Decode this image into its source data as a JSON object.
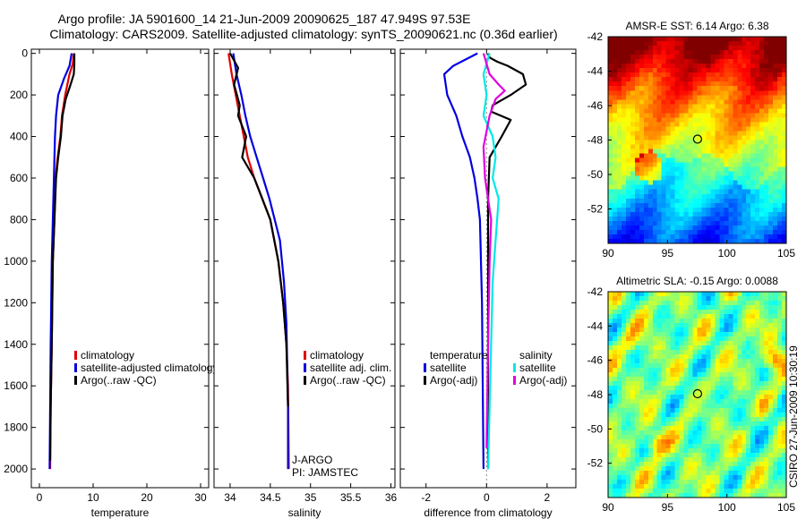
{
  "header": {
    "title_line1": "Argo profile: JA 5901600_14 21-Jun-2009 20090625_187 47.949S 97.53E",
    "title_line2": "Climatology: CARS2009. Satellite-adjusted climatology: synTS_20090621.nc (0.36d earlier)"
  },
  "side_label": "CSIRO 27-Jun-2009 10:30:19",
  "colors": {
    "climatology": "#e00000",
    "satellite": "#0000e0",
    "argo": "#000000",
    "sat_salinity": "#00e8e8",
    "argo_salinity": "#e000e0"
  },
  "chart_data": [
    {
      "type": "line",
      "id": "temperature",
      "xlabel": "temperature",
      "xlim": [
        -1.5,
        31.5
      ],
      "ylim": [
        2090,
        -20
      ],
      "xticks": [
        0,
        10,
        20,
        30
      ],
      "xtick_labels": [
        "0",
        "10",
        "20",
        "30"
      ],
      "yticks": [
        0,
        200,
        400,
        600,
        800,
        1000,
        1200,
        1400,
        1600,
        1800,
        2000
      ],
      "ytick_labels": [
        "0",
        "200",
        "400",
        "600",
        "800",
        "1000",
        "1200",
        "1400",
        "1600",
        "1800",
        "2000"
      ],
      "legend": [
        "climatology",
        "satellite-adjusted climatology",
        "Argo(..raw -QC)"
      ],
      "legend_position": "lower-middle",
      "series": [
        {
          "name": "climatology",
          "color": "climatology",
          "x": [
            6.4,
            6.2,
            5.6,
            4.8,
            4.2,
            3.9,
            3.4,
            3.0,
            2.8,
            2.5,
            2.3,
            2.1,
            2.0
          ],
          "y": [
            0,
            50,
            100,
            200,
            300,
            400,
            500,
            600,
            800,
            1000,
            1400,
            1700,
            2000
          ]
        },
        {
          "name": "satellite-adjusted climatology",
          "color": "satellite",
          "x": [
            6.0,
            5.6,
            4.6,
            3.5,
            3.1,
            2.9,
            2.8,
            2.7,
            2.5,
            2.3,
            2.1,
            2.0,
            1.9
          ],
          "y": [
            0,
            60,
            120,
            200,
            300,
            400,
            500,
            600,
            800,
            1000,
            1400,
            1700,
            2000
          ]
        },
        {
          "name": "Argo(..raw -QC)",
          "color": "argo",
          "x": [
            6.5,
            6.5,
            6.4,
            5.8,
            4.9,
            4.3,
            4.0,
            3.5,
            3.1,
            2.8,
            2.5,
            2.3,
            2.1,
            2.0
          ],
          "y": [
            0,
            50,
            100,
            150,
            220,
            300,
            400,
            500,
            600,
            800,
            1000,
            1400,
            1700,
            1960
          ]
        }
      ]
    },
    {
      "type": "line",
      "id": "salinity",
      "xlabel": "salinity",
      "xlim": [
        33.8,
        36.05
      ],
      "ylim": [
        2090,
        -20
      ],
      "xticks": [
        34,
        34.5,
        35,
        35.5,
        36
      ],
      "xtick_labels": [
        "34",
        "34.5",
        "35",
        "35.5",
        "36"
      ],
      "legend": [
        "climatology",
        "satellite adj. clim.",
        "Argo(..raw -QC)"
      ],
      "legend_position": "lower-middle",
      "annotations": [
        "J-ARGO",
        "PI: JAMSTEC"
      ],
      "series": [
        {
          "name": "climatology",
          "color": "climatology",
          "x": [
            33.98,
            34.02,
            34.07,
            34.12,
            34.17,
            34.22,
            34.3,
            34.4,
            34.5,
            34.6,
            34.66,
            34.7,
            34.72,
            34.73
          ],
          "y": [
            0,
            100,
            200,
            300,
            400,
            500,
            600,
            700,
            800,
            1000,
            1200,
            1400,
            1600,
            2000
          ]
        },
        {
          "name": "satellite adj. clim.",
          "color": "satellite",
          "x": [
            34.04,
            34.08,
            34.14,
            34.19,
            34.25,
            34.33,
            34.41,
            34.49,
            34.62,
            34.67,
            34.7,
            34.71,
            34.72,
            34.72
          ],
          "y": [
            0,
            100,
            200,
            300,
            400,
            500,
            600,
            700,
            900,
            1100,
            1300,
            1500,
            1700,
            2000
          ]
        },
        {
          "name": "Argo(..raw -QC)",
          "color": "argo",
          "x": [
            34.0,
            34.1,
            34.05,
            34.12,
            34.1,
            34.2,
            34.15,
            34.3,
            34.4,
            34.5,
            34.6,
            34.66,
            34.7,
            34.72
          ],
          "y": [
            0,
            70,
            150,
            250,
            300,
            400,
            500,
            600,
            700,
            800,
            1000,
            1200,
            1400,
            1700
          ]
        }
      ]
    },
    {
      "type": "line",
      "id": "difference",
      "xlabel": "difference from climatology",
      "xlim": [
        -2.85,
        2.95
      ],
      "ylim": [
        2090,
        -20
      ],
      "xticks": [
        -2,
        0,
        2
      ],
      "xtick_labels": [
        "-2",
        "0",
        "2"
      ],
      "legend": [
        "temperature",
        "satellite",
        "Argo(-adj)",
        "salinity",
        "satellite",
        "Argo(-adj)"
      ],
      "legend_position": "lower-middle",
      "series": [
        {
          "name": "temperature satellite",
          "color": "satellite",
          "x": [
            -0.3,
            -1.1,
            -1.4,
            -1.3,
            -1.0,
            -0.8,
            -0.55,
            -0.4,
            -0.3,
            -0.22,
            -0.15,
            -0.1
          ],
          "y": [
            0,
            60,
            100,
            200,
            300,
            400,
            500,
            600,
            700,
            800,
            1200,
            2000
          ]
        },
        {
          "name": "temperature Argo(-adj)",
          "color": "argo",
          "x": [
            0.05,
            0.1,
            0.35,
            0.7,
            1.2,
            1.3,
            0.8,
            0.2,
            0.15,
            0.8,
            0.5,
            0.1,
            0.05,
            0.05
          ],
          "y": [
            0,
            20,
            40,
            60,
            100,
            150,
            200,
            250,
            280,
            320,
            400,
            500,
            700,
            2000
          ]
        },
        {
          "name": "salinity satellite",
          "color": "sat_salinity",
          "x": [
            0.1,
            0.0,
            -0.1,
            0.0,
            -0.1,
            0.2,
            0.3,
            0.2,
            0.4,
            0.3,
            0.2,
            0.05
          ],
          "y": [
            0,
            50,
            100,
            200,
            300,
            400,
            500,
            600,
            700,
            900,
            1100,
            2000
          ]
        },
        {
          "name": "salinity Argo(-adj)",
          "color": "argo_salinity",
          "x": [
            -0.1,
            0.1,
            0.4,
            0.6,
            0.3,
            0.1,
            -0.1,
            -0.05,
            0.15,
            0.1,
            0.05,
            0.0
          ],
          "y": [
            0,
            100,
            150,
            180,
            220,
            300,
            450,
            600,
            800,
            1000,
            1400,
            1900
          ]
        }
      ]
    },
    {
      "type": "heatmap",
      "id": "sst_map",
      "title": "AMSR-E SST: 6.14 Argo: 6.38",
      "xlim": [
        90,
        105
      ],
      "ylim": [
        -54,
        -42
      ],
      "xticks": [
        90,
        95,
        100,
        105
      ],
      "xtick_labels": [
        "90",
        "95",
        "100",
        "105"
      ],
      "yticks": [
        -42,
        -44,
        -46,
        -48,
        -50,
        -52
      ],
      "ytick_labels": [
        "-42",
        "-44",
        "-46",
        "-48",
        "-50",
        "-52"
      ],
      "marker": {
        "lon": 97.53,
        "lat": -47.949
      }
    },
    {
      "type": "heatmap",
      "id": "sla_map",
      "title": "Altimetric SLA: -0.15 Argo: 0.0088",
      "xlim": [
        90,
        105
      ],
      "ylim": [
        -54,
        -42
      ],
      "xticks": [
        90,
        95,
        100,
        105
      ],
      "xtick_labels": [
        "90",
        "95",
        "100",
        "105"
      ],
      "yticks": [
        -42,
        -44,
        -46,
        -48,
        -50,
        -52
      ],
      "ytick_labels": [
        "-42",
        "-44",
        "-46",
        "-48",
        "-50",
        "-52"
      ],
      "marker": {
        "lon": 97.53,
        "lat": -47.949
      }
    }
  ]
}
